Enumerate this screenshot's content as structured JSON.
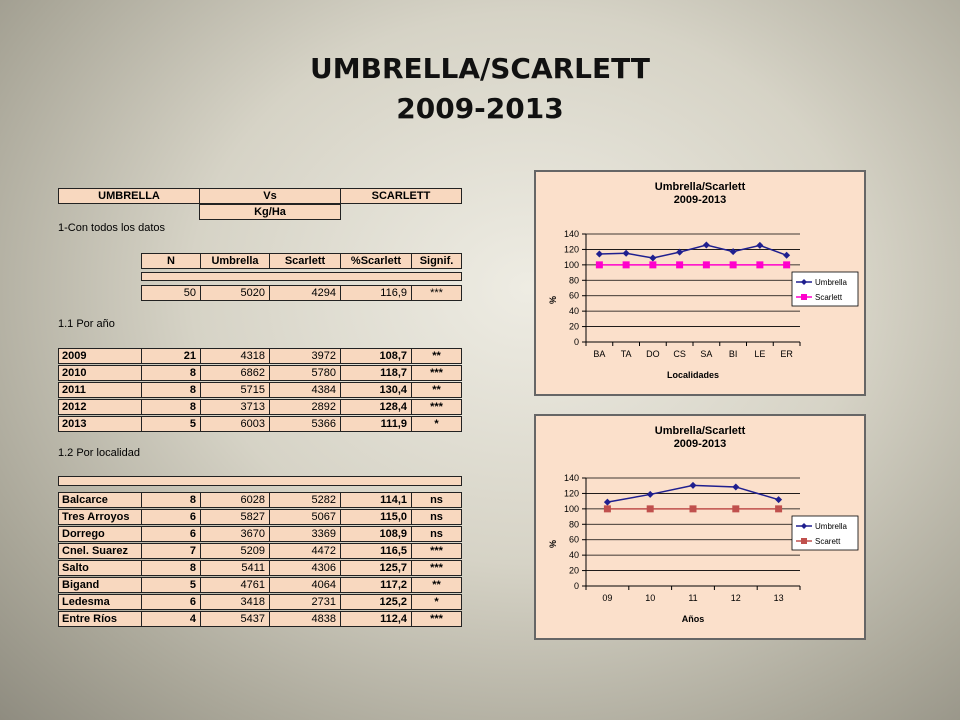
{
  "title": "UMBRELLA/SCARLETT",
  "subtitle": "2009-2013",
  "table": {
    "header_row": [
      "UMBRELLA",
      "Vs",
      "SCARLETT"
    ],
    "unit": "Kg/Ha",
    "section1": "1-Con todos los datos",
    "columns": [
      "N",
      "Umbrella",
      "Scarlett",
      "%Scarlett",
      "Signif."
    ],
    "all_data": [
      "50",
      "5020",
      "4294",
      "116,9",
      "***"
    ],
    "section2": "1.1 Por año",
    "by_year": [
      [
        "2009",
        "21",
        "4318",
        "3972",
        "108,7",
        "**"
      ],
      [
        "2010",
        "8",
        "6862",
        "5780",
        "118,7",
        "***"
      ],
      [
        "2011",
        "8",
        "5715",
        "4384",
        "130,4",
        "**"
      ],
      [
        "2012",
        "8",
        "3713",
        "2892",
        "128,4",
        "***"
      ],
      [
        "2013",
        "5",
        "6003",
        "5366",
        "111,9",
        "*"
      ]
    ],
    "section3": "1.2 Por localidad",
    "by_location": [
      [
        "Balcarce",
        "8",
        "6028",
        "5282",
        "114,1",
        "ns"
      ],
      [
        "Tres Arroyos",
        "6",
        "5827",
        "5067",
        "115,0",
        "ns"
      ],
      [
        "Dorrego",
        "6",
        "3670",
        "3369",
        "108,9",
        "ns"
      ],
      [
        "Cnel. Suarez",
        "7",
        "5209",
        "4472",
        "116,5",
        "***"
      ],
      [
        "Salto",
        "8",
        "5411",
        "4306",
        "125,7",
        "***"
      ],
      [
        "Bigand",
        "5",
        "4761",
        "4064",
        "117,2",
        "**"
      ],
      [
        "Ledesma",
        "6",
        "3418",
        "2731",
        "125,2",
        "*"
      ],
      [
        "Entre Ríos",
        "4",
        "5437",
        "4838",
        "112,4",
        "***"
      ]
    ]
  },
  "chart_data": [
    {
      "type": "line",
      "title": "Umbrella/Scarlett",
      "subtitle": "2009-2013",
      "xlabel": "Localidades",
      "ylabel": "%",
      "categories": [
        "BA",
        "TA",
        "DO",
        "CS",
        "SA",
        "BI",
        "LE",
        "ER"
      ],
      "ylim": [
        0,
        140
      ],
      "yticks": [
        0,
        20,
        40,
        60,
        80,
        100,
        120,
        140
      ],
      "grid": true,
      "legend": "right",
      "series": [
        {
          "name": "Umbrella",
          "values": [
            114.1,
            115.0,
            108.9,
            116.5,
            125.7,
            117.2,
            125.2,
            112.4
          ],
          "color": "#1f1f8f",
          "marker": "diamond"
        },
        {
          "name": "Scarlett",
          "values": [
            100,
            100,
            100,
            100,
            100,
            100,
            100,
            100
          ],
          "color": "#ff00cc",
          "marker": "square"
        }
      ]
    },
    {
      "type": "line",
      "title": "Umbrella/Scarlett",
      "subtitle": "2009-2013",
      "xlabel": "Años",
      "ylabel": "%",
      "categories": [
        "09",
        "10",
        "11",
        "12",
        "13"
      ],
      "ylim": [
        0,
        140
      ],
      "yticks": [
        0,
        20,
        40,
        60,
        80,
        100,
        120,
        140
      ],
      "grid": true,
      "legend": "right",
      "series": [
        {
          "name": "Umbrella",
          "values": [
            108.7,
            118.7,
            130.4,
            128.4,
            111.9
          ],
          "color": "#1f1f8f",
          "marker": "diamond"
        },
        {
          "name": "Scarett",
          "values": [
            100,
            100,
            100,
            100,
            100
          ],
          "color": "#c0504d",
          "marker": "square"
        }
      ]
    }
  ]
}
